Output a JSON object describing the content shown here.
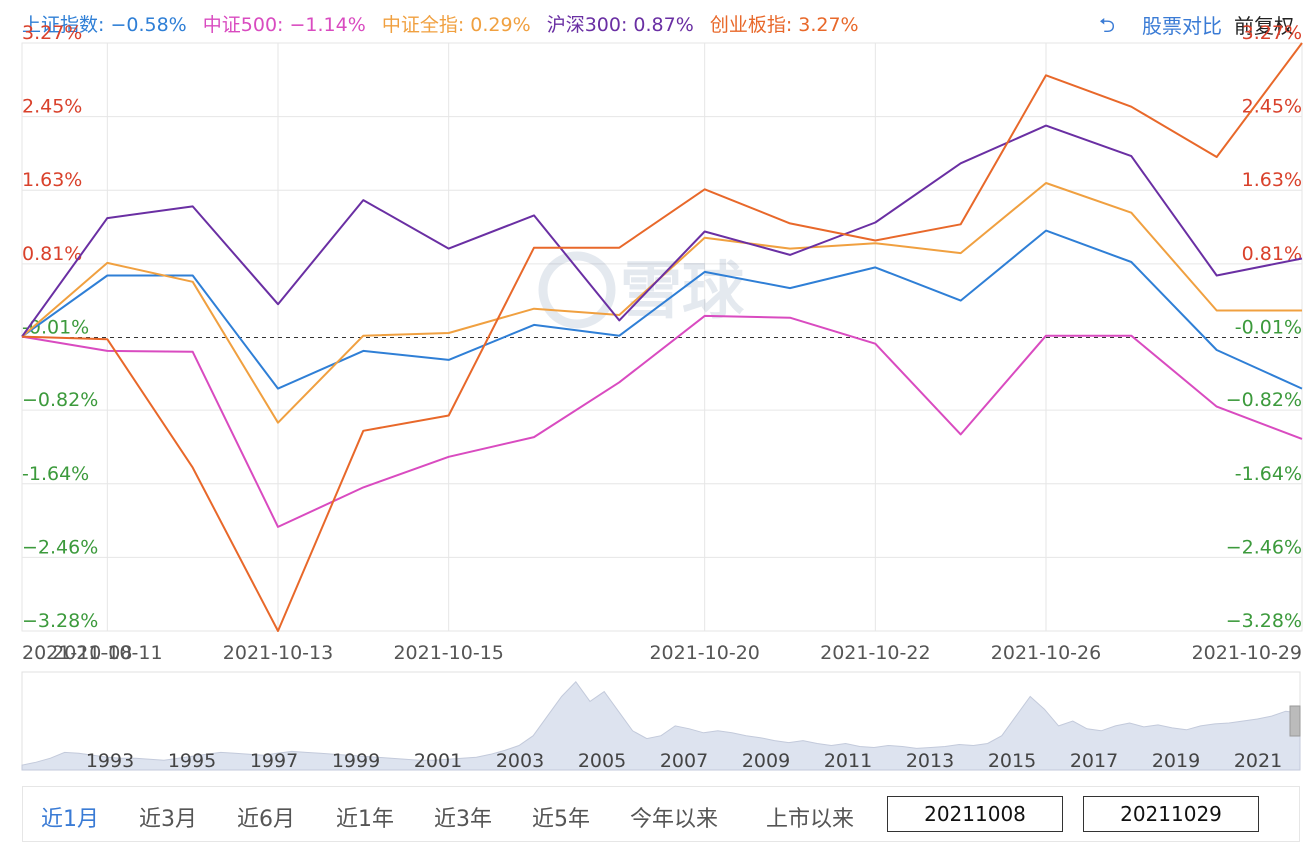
{
  "legend": [
    {
      "label": "上证指数: −0.58%",
      "color": "#2f7fd6"
    },
    {
      "label": "中证500: −1.14%",
      "color": "#d94bc0"
    },
    {
      "label": "中证全指: 0.29%",
      "color": "#f0a040"
    },
    {
      "label": "沪深300: 0.87%",
      "color": "#6a2fa3"
    },
    {
      "label": "创业板指: 3.27%",
      "color": "#e8682a"
    }
  ],
  "toolbar": {
    "back_icon": "undo-arrow-icon",
    "compare_label": "股票对比",
    "adjust_label": "前复权"
  },
  "watermark": "雪球",
  "range_buttons": [
    "近1月",
    "近3月",
    "近6月",
    "近1年",
    "近3年",
    "近5年",
    "今年以来",
    "上市以来"
  ],
  "range_active": 0,
  "date_from": "20211008",
  "date_to": "20211029",
  "colors": {
    "positive": "#d9412b",
    "negative": "#3c9a3c",
    "accent": "#3a7bd5"
  },
  "chart_data": {
    "type": "line",
    "x": [
      "2021-10-08",
      "2021-10-11",
      "2021-10-12",
      "2021-10-13",
      "2021-10-14",
      "2021-10-15",
      "2021-10-18",
      "2021-10-19",
      "2021-10-20",
      "2021-10-21",
      "2021-10-22",
      "2021-10-25",
      "2021-10-26",
      "2021-10-27",
      "2021-10-28",
      "2021-10-29"
    ],
    "x_ticks": [
      "2021-10-08",
      "2021-10-11",
      "2021-10-13",
      "2021-10-15",
      "2021-10-20",
      "2021-10-22",
      "2021-10-26",
      "2021-10-29"
    ],
    "y_ticks": [
      "3.27%",
      "2.45%",
      "1.63%",
      "0.81%",
      "-0.01%",
      "−0.82%",
      "-1.64%",
      "−2.46%",
      "−3.28%"
    ],
    "y_tick_values": [
      3.27,
      2.45,
      1.63,
      0.81,
      -0.01,
      -0.82,
      -1.64,
      -2.46,
      -3.28
    ],
    "ylim": [
      -3.28,
      3.27
    ],
    "grid": true,
    "series": [
      {
        "name": "上证指数",
        "color": "#2f7fd6",
        "values": [
          0,
          0.68,
          0.68,
          -0.58,
          -0.16,
          -0.26,
          0.13,
          0.01,
          0.72,
          0.54,
          0.77,
          0.4,
          1.18,
          0.83,
          -0.15,
          -0.58
        ]
      },
      {
        "name": "中证500",
        "color": "#d94bc0",
        "values": [
          0,
          -0.16,
          -0.17,
          -2.12,
          -1.68,
          -1.34,
          -1.12,
          -0.51,
          0.23,
          0.21,
          -0.08,
          -1.09,
          0.01,
          0.01,
          -0.78,
          -1.14
        ]
      },
      {
        "name": "中证全指",
        "color": "#f0a040",
        "values": [
          0,
          0.82,
          0.61,
          -0.96,
          0.01,
          0.04,
          0.31,
          0.24,
          1.1,
          0.98,
          1.04,
          0.93,
          1.71,
          1.38,
          0.29,
          0.29
        ]
      },
      {
        "name": "沪深300",
        "color": "#6a2fa3",
        "values": [
          0,
          1.32,
          1.45,
          0.36,
          1.52,
          0.98,
          1.35,
          0.18,
          1.17,
          0.91,
          1.27,
          1.93,
          2.35,
          2.01,
          0.68,
          0.87
        ]
      },
      {
        "name": "创业板指",
        "color": "#e8682a",
        "values": [
          0,
          -0.03,
          -1.46,
          -3.28,
          -1.05,
          -0.88,
          0.99,
          0.99,
          1.64,
          1.26,
          1.07,
          1.25,
          2.91,
          2.56,
          2.0,
          3.27
        ]
      }
    ]
  },
  "overview": {
    "years": [
      "1993",
      "1995",
      "1997",
      "1999",
      "2001",
      "2003",
      "2005",
      "2007",
      "2009",
      "2011",
      "2013",
      "2015",
      "2017",
      "2019",
      "2021"
    ],
    "series": [
      0.05,
      0.08,
      0.12,
      0.18,
      0.17,
      0.15,
      0.13,
      0.12,
      0.12,
      0.11,
      0.1,
      0.12,
      0.14,
      0.16,
      0.18,
      0.17,
      0.16,
      0.15,
      0.17,
      0.19,
      0.18,
      0.17,
      0.16,
      0.15,
      0.14,
      0.13,
      0.12,
      0.11,
      0.1,
      0.1,
      0.11,
      0.12,
      0.13,
      0.16,
      0.2,
      0.25,
      0.35,
      0.55,
      0.75,
      0.9,
      0.7,
      0.8,
      0.6,
      0.4,
      0.32,
      0.35,
      0.45,
      0.42,
      0.38,
      0.4,
      0.38,
      0.35,
      0.33,
      0.3,
      0.28,
      0.3,
      0.27,
      0.25,
      0.27,
      0.24,
      0.23,
      0.25,
      0.24,
      0.22,
      0.23,
      0.24,
      0.26,
      0.25,
      0.27,
      0.35,
      0.55,
      0.75,
      0.62,
      0.45,
      0.5,
      0.42,
      0.4,
      0.45,
      0.48,
      0.44,
      0.46,
      0.43,
      0.41,
      0.45,
      0.47,
      0.48,
      0.5,
      0.52,
      0.55,
      0.6,
      0.58
    ]
  }
}
